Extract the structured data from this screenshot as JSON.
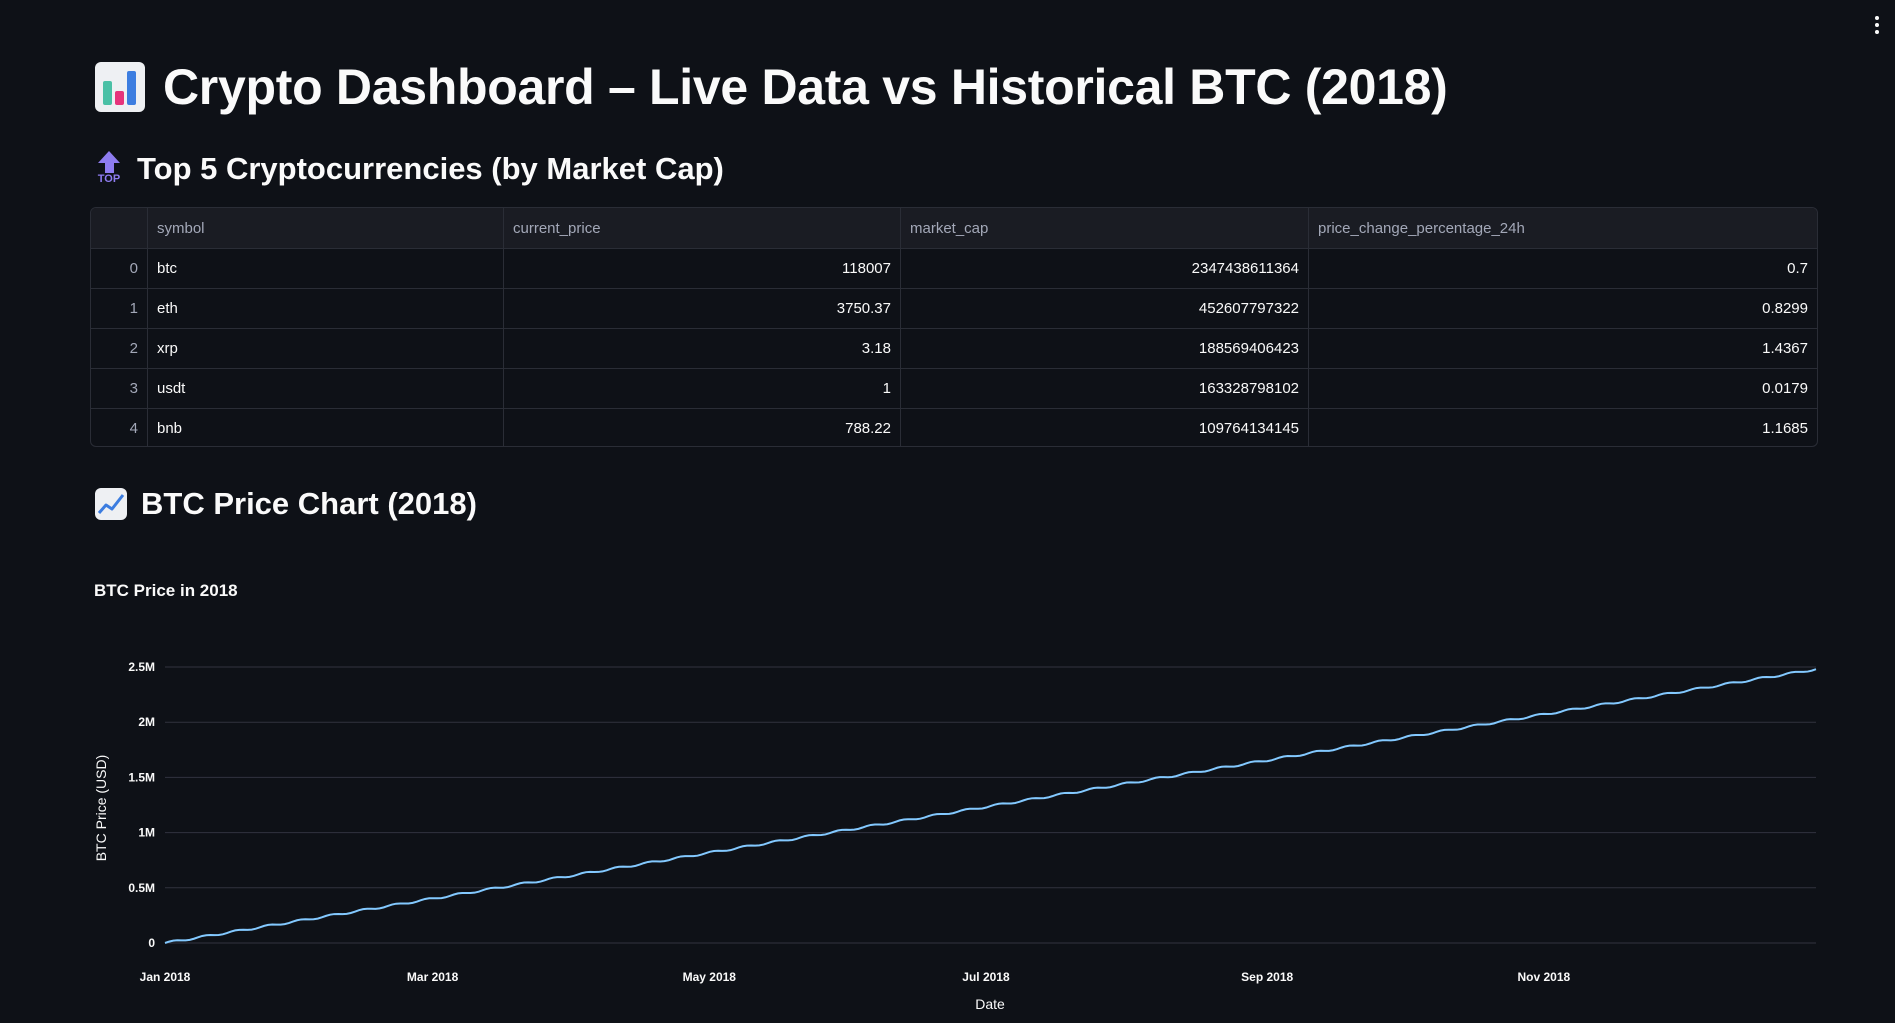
{
  "header": {
    "title": "Crypto Dashboard – Live Data vs Historical BTC (2018)",
    "title_icon": "bar-chart-emoji-icon",
    "menu_icon": "vertical-ellipsis-icon"
  },
  "top5": {
    "heading": "Top 5 Cryptocurrencies (by Market Cap)",
    "heading_icon": "top-arrow-emoji-icon",
    "columns": [
      "",
      "symbol",
      "current_price",
      "market_cap",
      "price_change_percentage_24h"
    ],
    "rows": [
      {
        "index": "0",
        "symbol": "btc",
        "current_price": "118007",
        "market_cap": "2347438611364",
        "price_change_percentage_24h": "0.7"
      },
      {
        "index": "1",
        "symbol": "eth",
        "current_price": "3750.37",
        "market_cap": "452607797322",
        "price_change_percentage_24h": "0.8299"
      },
      {
        "index": "2",
        "symbol": "xrp",
        "current_price": "3.18",
        "market_cap": "188569406423",
        "price_change_percentage_24h": "1.4367"
      },
      {
        "index": "3",
        "symbol": "usdt",
        "current_price": "1",
        "market_cap": "163328798102",
        "price_change_percentage_24h": "0.0179"
      },
      {
        "index": "4",
        "symbol": "bnb",
        "current_price": "788.22",
        "market_cap": "109764134145",
        "price_change_percentage_24h": "1.1685"
      }
    ]
  },
  "btc_section": {
    "heading": "BTC Price Chart (2018)",
    "heading_icon": "chart-increasing-emoji-icon"
  },
  "chart_data": {
    "type": "line",
    "title": "BTC Price in 2018",
    "xlabel": "Date",
    "ylabel": "BTC Price (USD)",
    "x_ticks": [
      "Jan 2018",
      "Mar 2018",
      "May 2018",
      "Jul 2018",
      "Sep 2018",
      "Nov 2018"
    ],
    "y_ticks": [
      "0",
      "0.5M",
      "1M",
      "1.5M",
      "2M",
      "2.5M"
    ],
    "xlim": [
      "2018-01-01",
      "2018-12-31"
    ],
    "ylim": [
      0,
      2500000
    ],
    "grid": true,
    "line_color": "#83c9ff",
    "series": [
      {
        "x_start": "2018-01-01",
        "x_end": "2018-12-31",
        "y_start": 0,
        "y_end": 2480000,
        "pattern": "steady near-linear rise with small periodic wiggles"
      }
    ]
  }
}
